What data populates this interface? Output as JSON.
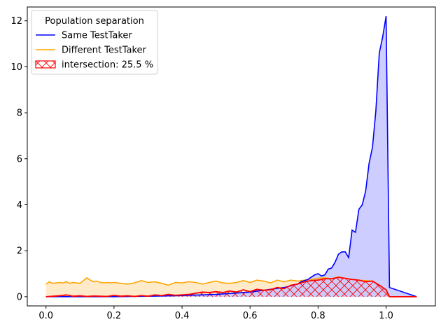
{
  "chart_data": {
    "type": "area",
    "xlim": [
      -0.055,
      1.145
    ],
    "ylim": [
      -0.4,
      12.6
    ],
    "xticks": [
      0.0,
      0.2,
      0.4,
      0.6,
      0.8,
      1.0
    ],
    "xtick_labels": [
      "0.0",
      "0.2",
      "0.4",
      "0.6",
      "0.8",
      "1.0"
    ],
    "yticks": [
      0,
      2,
      4,
      6,
      8,
      10,
      12
    ],
    "ytick_labels": [
      "0",
      "2",
      "4",
      "6",
      "8",
      "10",
      "12"
    ],
    "legend": {
      "title": "Population separation",
      "placement": "top-left"
    },
    "series": [
      {
        "name": "Same TestTaker",
        "color": "#0000ff",
        "fill": "#c8c8ff",
        "x": [
          0.0,
          0.1,
          0.2,
          0.3,
          0.4,
          0.5,
          0.6,
          0.7,
          0.74,
          0.75,
          0.76,
          0.77,
          0.78,
          0.79,
          0.8,
          0.81,
          0.82,
          0.83,
          0.84,
          0.85,
          0.86,
          0.87,
          0.88,
          0.89,
          0.9,
          0.91,
          0.92,
          0.93,
          0.94,
          0.95,
          0.96,
          0.97,
          0.98,
          0.99,
          1.0,
          1.01,
          1.09
        ],
        "values": [
          0.0,
          0.0,
          0.0,
          0.02,
          0.05,
          0.1,
          0.2,
          0.4,
          0.55,
          0.65,
          0.7,
          0.75,
          0.85,
          0.95,
          1.0,
          0.9,
          0.95,
          1.2,
          1.25,
          1.5,
          1.85,
          1.95,
          1.95,
          1.7,
          2.9,
          2.8,
          3.8,
          4.0,
          4.6,
          5.8,
          6.5,
          8.1,
          10.6,
          11.3,
          12.2,
          0.4,
          0.0
        ]
      },
      {
        "name": "Different TestTaker",
        "color": "#ffa500",
        "fill": "#ffe8c4",
        "x": [
          0.0,
          0.01,
          0.02,
          0.03,
          0.04,
          0.05,
          0.06,
          0.07,
          0.08,
          0.09,
          0.1,
          0.11,
          0.12,
          0.13,
          0.14,
          0.15,
          0.16,
          0.17,
          0.18,
          0.19,
          0.2,
          0.22,
          0.24,
          0.26,
          0.28,
          0.3,
          0.32,
          0.34,
          0.36,
          0.38,
          0.4,
          0.42,
          0.44,
          0.46,
          0.48,
          0.5,
          0.52,
          0.54,
          0.56,
          0.58,
          0.6,
          0.62,
          0.64,
          0.66,
          0.68,
          0.7,
          0.72,
          0.74,
          0.76,
          0.78,
          0.8,
          0.82,
          0.84,
          0.86,
          0.88,
          0.9,
          0.92,
          0.94,
          0.96,
          0.98,
          1.0,
          1.01,
          1.09
        ],
        "values": [
          0.55,
          0.65,
          0.58,
          0.6,
          0.62,
          0.6,
          0.65,
          0.58,
          0.62,
          0.6,
          0.58,
          0.7,
          0.82,
          0.72,
          0.65,
          0.68,
          0.62,
          0.6,
          0.62,
          0.6,
          0.62,
          0.58,
          0.55,
          0.6,
          0.7,
          0.62,
          0.65,
          0.58,
          0.5,
          0.62,
          0.6,
          0.65,
          0.62,
          0.55,
          0.62,
          0.68,
          0.6,
          0.58,
          0.62,
          0.7,
          0.62,
          0.72,
          0.68,
          0.6,
          0.72,
          0.65,
          0.72,
          0.68,
          0.72,
          0.75,
          0.8,
          0.82,
          0.78,
          0.86,
          0.8,
          0.75,
          0.72,
          0.7,
          0.68,
          0.5,
          0.3,
          0.0,
          0.0
        ]
      }
    ],
    "intersection": {
      "name": "intersection: 25.5 %",
      "color": "#ff0000",
      "x": [
        0.0,
        0.02,
        0.04,
        0.06,
        0.08,
        0.1,
        0.12,
        0.14,
        0.16,
        0.18,
        0.2,
        0.22,
        0.24,
        0.26,
        0.28,
        0.3,
        0.32,
        0.34,
        0.36,
        0.38,
        0.4,
        0.42,
        0.44,
        0.46,
        0.48,
        0.5,
        0.52,
        0.54,
        0.56,
        0.58,
        0.6,
        0.62,
        0.64,
        0.66,
        0.68,
        0.7,
        0.72,
        0.74,
        0.76,
        0.78,
        0.8,
        0.82,
        0.84,
        0.86,
        0.88,
        0.9,
        0.92,
        0.94,
        0.96,
        0.98,
        1.0,
        1.01,
        1.09
      ],
      "values": [
        0.0,
        0.02,
        0.04,
        0.08,
        0.02,
        0.04,
        0.01,
        0.03,
        0.02,
        0.01,
        0.06,
        0.02,
        0.04,
        0.01,
        0.05,
        0.02,
        0.08,
        0.05,
        0.1,
        0.06,
        0.08,
        0.1,
        0.15,
        0.2,
        0.18,
        0.22,
        0.18,
        0.25,
        0.2,
        0.3,
        0.22,
        0.32,
        0.28,
        0.3,
        0.4,
        0.35,
        0.5,
        0.55,
        0.65,
        0.7,
        0.72,
        0.78,
        0.78,
        0.84,
        0.8,
        0.75,
        0.72,
        0.65,
        0.68,
        0.5,
        0.3,
        0.0,
        0.0
      ]
    }
  }
}
